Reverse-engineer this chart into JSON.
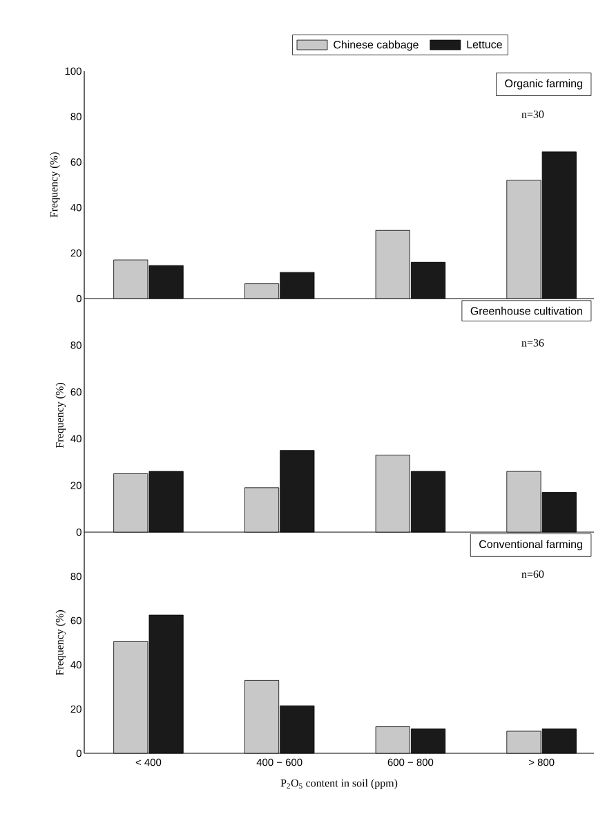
{
  "chart_data": [
    {
      "type": "bar",
      "title": "Organic farming",
      "annotations": [
        "n=30"
      ],
      "categories": [
        null,
        null,
        null,
        null
      ],
      "series": [
        {
          "name": "Chinese cabbage",
          "color": "#c8c8c8",
          "values": [
            17,
            6.5,
            30,
            52
          ]
        },
        {
          "name": "Lettuce",
          "color": "#1a1a1a",
          "values": [
            14.5,
            11.5,
            16,
            64.5
          ]
        }
      ],
      "ylabel": "Frequency (%)",
      "ylim": [
        0,
        100
      ],
      "yticks": [
        0,
        20,
        40,
        60,
        80,
        100
      ],
      "legend": "top",
      "tick_labels": "y"
    },
    {
      "type": "bar",
      "title": "Greenhouse cultivation",
      "annotations": [
        "n=36"
      ],
      "categories": [
        null,
        null,
        null,
        null
      ],
      "series": [
        {
          "color": "#c8c8c8",
          "values": [
            25,
            19,
            33,
            26
          ]
        },
        {
          "color": "#1a1a1a",
          "values": [
            26,
            35,
            26,
            17
          ]
        }
      ],
      "ylabel": "Frequency (%)",
      "ylim": [
        0,
        100
      ],
      "yticks": [
        0,
        20,
        40,
        60,
        80
      ],
      "tick_labels": "y"
    },
    {
      "type": "bar",
      "title": "Conventional farming",
      "annotations": [
        "n=60"
      ],
      "categories": [
        "< 400",
        "400 − 600",
        "600 − 800",
        "> 800"
      ],
      "series": [
        {
          "color": "#c8c8c8",
          "values": [
            50.5,
            33,
            12,
            10
          ]
        },
        {
          "color": "#1a1a1a",
          "values": [
            62.5,
            21.5,
            11,
            11
          ]
        }
      ],
      "ylabel": "Frequency (%)",
      "xlabel": "P$_{2}$O$_{5}$ content in soil (ppm)",
      "ylim": [
        0,
        100
      ],
      "yticks": [
        0,
        20,
        40,
        60,
        80
      ]
    }
  ]
}
